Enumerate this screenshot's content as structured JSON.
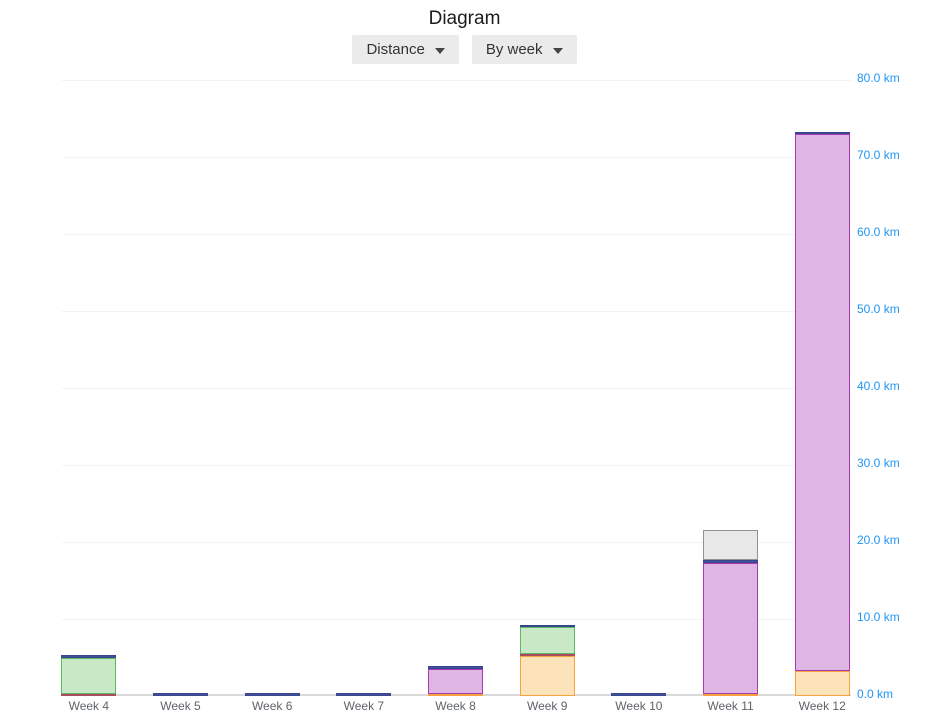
{
  "page": {
    "title": "Diagram"
  },
  "controls": {
    "metric_dropdown": {
      "label": "Distance",
      "caret_icon": "caret-down"
    },
    "grouping_dropdown": {
      "label": "By week",
      "caret_icon": "caret-down"
    }
  },
  "chart_data": {
    "type": "bar",
    "stacked": true,
    "title": "Diagram",
    "unit": "km",
    "categories": [
      "Week 4",
      "Week 5",
      "Week 6",
      "Week 7",
      "Week 8",
      "Week 9",
      "Week 10",
      "Week 11",
      "Week 12"
    ],
    "ylim": [
      0,
      80
    ],
    "ytick_step": 10,
    "ytick_labels": [
      "0.0 km",
      "10.0 km",
      "20.0 km",
      "30.0 km",
      "40.0 km",
      "50.0 km",
      "60.0 km",
      "70.0 km",
      "80.0 km"
    ],
    "yaxis_side": "right",
    "grid": true,
    "legend": false,
    "series": [
      {
        "name": "orange-activity",
        "fill": "#fce3ba",
        "border": "#f4a33d",
        "values": [
          0,
          0,
          0,
          0,
          0.25,
          5.2,
          0,
          0.2,
          3.2
        ]
      },
      {
        "name": "red-activity",
        "fill": "#bc5a6e",
        "border": "#ab4a60",
        "values": [
          0.3,
          0,
          0,
          0,
          0,
          0.3,
          0,
          0,
          0
        ]
      },
      {
        "name": "green-activity",
        "fill": "#c9e8c6",
        "border": "#5cb863",
        "values": [
          4.7,
          0,
          0,
          0,
          0,
          3.5,
          0,
          0,
          0
        ]
      },
      {
        "name": "purple-activity",
        "fill": "#ddb6e4",
        "border": "#ab37b4",
        "values": [
          0,
          0,
          0,
          0,
          3.2,
          0,
          0,
          17.0,
          69.7
        ]
      },
      {
        "name": "blue-activity",
        "fill": "#42519e",
        "border": "#38478c",
        "values": [
          0.45,
          0.4,
          0.4,
          0.4,
          0.4,
          0.3,
          0.35,
          0.45,
          0.2
        ]
      },
      {
        "name": "gray-activity",
        "fill": "#e8e8e8",
        "border": "#929292",
        "values": [
          0,
          0,
          0,
          0,
          0,
          0,
          0,
          3.9,
          0
        ]
      }
    ]
  },
  "colors": {
    "axis_label_blue": "#2196f3",
    "x_label_gray": "#5f6368",
    "gridline": "#f3f3f3",
    "axis_line": "#d9d9d9",
    "dropdown_bg": "#ebebeb"
  }
}
